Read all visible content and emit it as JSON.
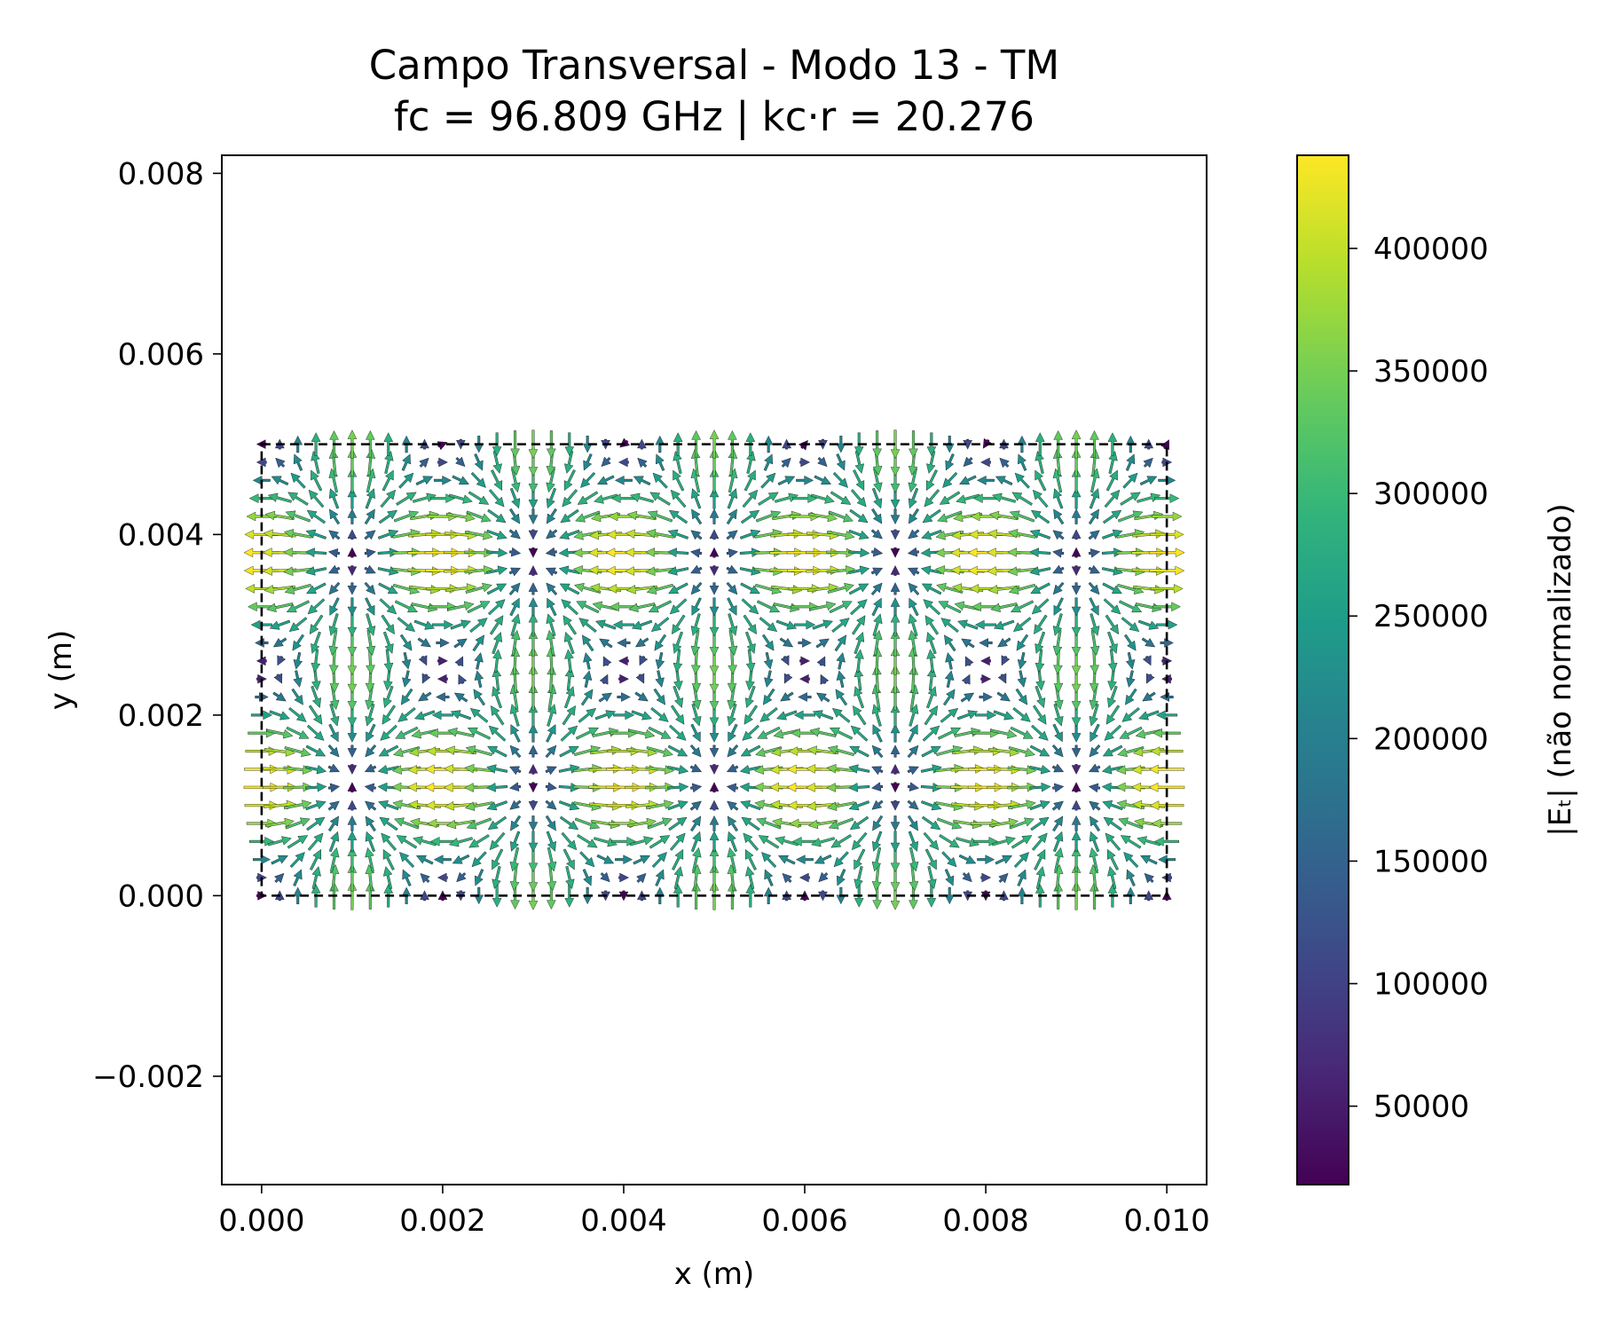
{
  "chart_data": {
    "type": "quiver",
    "title": "Campo Transversal - Modo 13 - TM",
    "subtitle": "fc = 96.809 GHz | kc·r = 20.276",
    "xlabel": "x (m)",
    "ylabel": "y (m)",
    "xlim": [
      -0.00044,
      0.01044
    ],
    "ylim": [
      -0.0032,
      0.0082
    ],
    "x_ticks": [
      0.0,
      0.002,
      0.004,
      0.006,
      0.008,
      0.01
    ],
    "x_tick_labels": [
      "0.000",
      "0.002",
      "0.004",
      "0.006",
      "0.008",
      "0.010"
    ],
    "y_ticks": [
      -0.002,
      0.0,
      0.002,
      0.004,
      0.006,
      0.008
    ],
    "y_tick_labels": [
      "−0.002",
      "0.000",
      "0.002",
      "0.004",
      "0.006",
      "0.008"
    ],
    "guide_rectangle": {
      "x": [
        0.0,
        0.01
      ],
      "y": [
        0.0,
        0.005
      ],
      "style": "dashed",
      "color": "#000000"
    },
    "field": {
      "mode": "TM",
      "m": 5,
      "n": 2,
      "a": 0.01,
      "b": 0.005,
      "grid_nx": 51,
      "grid_ny": 26,
      "max_magnitude": 438000
    },
    "colorbar": {
      "label": "|Eₜ| (não normalizado)",
      "colormap": "viridis",
      "min": 18000,
      "max": 438000,
      "ticks": [
        50000,
        100000,
        150000,
        200000,
        250000,
        300000,
        350000,
        400000
      ],
      "tick_labels": [
        "50000",
        "100000",
        "150000",
        "200000",
        "250000",
        "300000",
        "350000",
        "400000"
      ]
    }
  }
}
